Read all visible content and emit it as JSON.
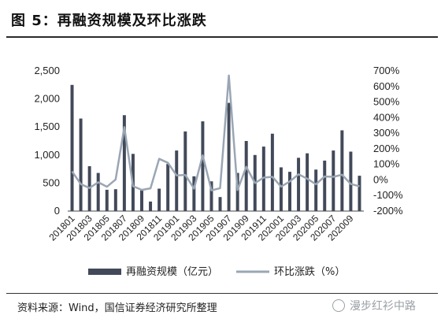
{
  "figure": {
    "title": "图 5：再融资规模及环比涨跌",
    "source": "资料来源：Wind，国信证券经济研究所整理",
    "watermark": "漫步红衫中路"
  },
  "colors": {
    "bar": "#424959",
    "line": "#9aa6b4",
    "axis": "#444444"
  },
  "chart_data": {
    "type": "bar",
    "categories": [
      "201801",
      "201802",
      "201803",
      "201804",
      "201805",
      "201806",
      "201807",
      "201808",
      "201809",
      "201810",
      "201811",
      "201812",
      "201901",
      "201902",
      "201903",
      "201904",
      "201905",
      "201906",
      "201907",
      "201908",
      "201909",
      "201910",
      "201911",
      "201912",
      "202001",
      "202002",
      "202003",
      "202004",
      "202005",
      "202006",
      "202007",
      "202008",
      "202009",
      "202010"
    ],
    "x_tick_labels": [
      "201801",
      "201803",
      "201805",
      "201807",
      "201809",
      "201811",
      "201901",
      "201903",
      "201905",
      "201907",
      "201909",
      "201911",
      "202001",
      "202003",
      "202005",
      "202007",
      "202009"
    ],
    "series": [
      {
        "name": "再融资规模（亿元）",
        "type": "bar",
        "axis": "left",
        "values": [
          2250,
          1650,
          800,
          680,
          380,
          390,
          1710,
          1020,
          370,
          170,
          400,
          840,
          1080,
          1420,
          620,
          1600,
          530,
          250,
          1930,
          680,
          1250,
          1000,
          1150,
          1380,
          780,
          700,
          950,
          1030,
          740,
          900,
          1080,
          1440,
          1060,
          630
        ]
      },
      {
        "name": "环比涨跌（%）",
        "type": "line",
        "axis": "right",
        "values": [
          55,
          -27,
          -52,
          -15,
          -44,
          3,
          339,
          -40,
          -64,
          -54,
          135,
          110,
          29,
          32,
          -56,
          158,
          -67,
          -53,
          670,
          -65,
          84,
          -20,
          15,
          20,
          -43,
          -10,
          36,
          8,
          -28,
          22,
          20,
          33,
          -26,
          -41
        ]
      }
    ],
    "y_left": {
      "min": 0,
      "max": 2500,
      "ticks": [
        "0",
        "500",
        "1,000",
        "1,500",
        "2,000",
        "2,500"
      ]
    },
    "y_right": {
      "min": -200,
      "max": 700,
      "ticks": [
        "-200%",
        "-100%",
        "0%",
        "100%",
        "200%",
        "300%",
        "400%",
        "500%",
        "600%",
        "700%"
      ]
    },
    "legend": {
      "position": "bottom"
    },
    "grid": false
  }
}
